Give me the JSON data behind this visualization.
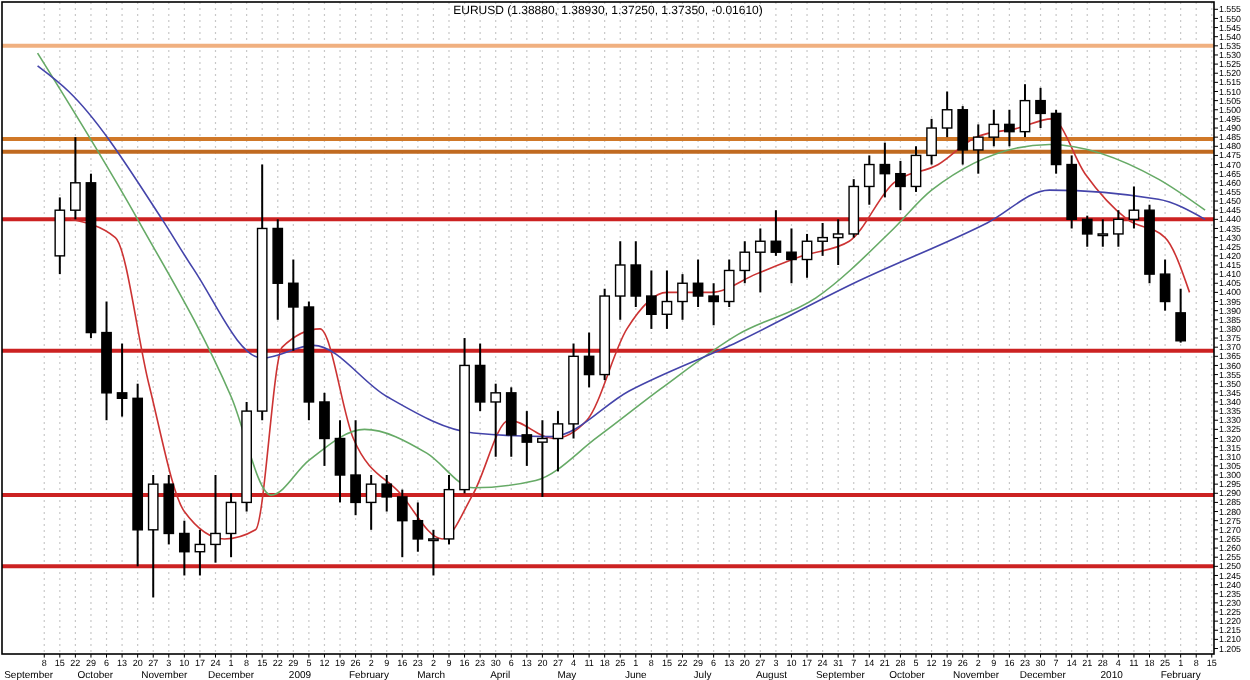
{
  "chart_data": {
    "type": "candlestick",
    "title": "EURUSD (1.38880, 1.38930, 1.37250, 1.37350, -0.01610)",
    "x": [
      "2008-09-15",
      "2008-09-22",
      "2008-09-29",
      "2008-10-06",
      "2008-10-13",
      "2008-10-20",
      "2008-10-27",
      "2008-11-03",
      "2008-11-10",
      "2008-11-17",
      "2008-11-24",
      "2008-12-01",
      "2008-12-08",
      "2008-12-15",
      "2008-12-22",
      "2008-12-29",
      "2009-01-05",
      "2009-01-12",
      "2009-01-19",
      "2009-01-26",
      "2009-02-02",
      "2009-02-09",
      "2009-02-16",
      "2009-02-23",
      "2009-03-02",
      "2009-03-09",
      "2009-03-16",
      "2009-03-23",
      "2009-03-30",
      "2009-04-06",
      "2009-04-13",
      "2009-04-20",
      "2009-04-27",
      "2009-05-04",
      "2009-05-11",
      "2009-05-18",
      "2009-05-25",
      "2009-06-01",
      "2009-06-08",
      "2009-06-15",
      "2009-06-22",
      "2009-06-29",
      "2009-07-06",
      "2009-07-13",
      "2009-07-20",
      "2009-07-27",
      "2009-08-03",
      "2009-08-10",
      "2009-08-17",
      "2009-08-24",
      "2009-08-31",
      "2009-09-07",
      "2009-09-14",
      "2009-09-21",
      "2009-09-28",
      "2009-10-05",
      "2009-10-12",
      "2009-10-19",
      "2009-10-26",
      "2009-11-02",
      "2009-11-09",
      "2009-11-16",
      "2009-11-23",
      "2009-11-30",
      "2009-12-07",
      "2009-12-14",
      "2009-12-21",
      "2009-12-28",
      "2010-01-04",
      "2010-01-11",
      "2010-01-18",
      "2010-01-25",
      "2010-02-01"
    ],
    "ohlc": [
      [
        1.42,
        1.452,
        1.41,
        1.445
      ],
      [
        1.445,
        1.485,
        1.44,
        1.46
      ],
      [
        1.46,
        1.465,
        1.375,
        1.378
      ],
      [
        1.378,
        1.395,
        1.33,
        1.345
      ],
      [
        1.345,
        1.372,
        1.332,
        1.342
      ],
      [
        1.342,
        1.35,
        1.25,
        1.27
      ],
      [
        1.27,
        1.3,
        1.233,
        1.295
      ],
      [
        1.295,
        1.3,
        1.262,
        1.268
      ],
      [
        1.268,
        1.275,
        1.245,
        1.258
      ],
      [
        1.258,
        1.27,
        1.245,
        1.262
      ],
      [
        1.262,
        1.3,
        1.252,
        1.268
      ],
      [
        1.268,
        1.29,
        1.255,
        1.285
      ],
      [
        1.285,
        1.34,
        1.28,
        1.335
      ],
      [
        1.335,
        1.47,
        1.33,
        1.435
      ],
      [
        1.435,
        1.44,
        1.385,
        1.405
      ],
      [
        1.405,
        1.418,
        1.368,
        1.392
      ],
      [
        1.392,
        1.395,
        1.33,
        1.34
      ],
      [
        1.34,
        1.345,
        1.305,
        1.32
      ],
      [
        1.32,
        1.33,
        1.285,
        1.3
      ],
      [
        1.3,
        1.33,
        1.278,
        1.285
      ],
      [
        1.285,
        1.3,
        1.27,
        1.295
      ],
      [
        1.295,
        1.3,
        1.28,
        1.288
      ],
      [
        1.288,
        1.292,
        1.255,
        1.275
      ],
      [
        1.275,
        1.285,
        1.258,
        1.265
      ],
      [
        1.265,
        1.27,
        1.245,
        1.265
      ],
      [
        1.265,
        1.3,
        1.262,
        1.292
      ],
      [
        1.292,
        1.375,
        1.29,
        1.36
      ],
      [
        1.36,
        1.372,
        1.335,
        1.34
      ],
      [
        1.34,
        1.35,
        1.31,
        1.345
      ],
      [
        1.345,
        1.348,
        1.31,
        1.322
      ],
      [
        1.322,
        1.335,
        1.305,
        1.318
      ],
      [
        1.318,
        1.33,
        1.288,
        1.32
      ],
      [
        1.32,
        1.335,
        1.302,
        1.328
      ],
      [
        1.328,
        1.372,
        1.32,
        1.365
      ],
      [
        1.365,
        1.378,
        1.348,
        1.355
      ],
      [
        1.355,
        1.402,
        1.352,
        1.398
      ],
      [
        1.398,
        1.428,
        1.385,
        1.415
      ],
      [
        1.415,
        1.428,
        1.392,
        1.398
      ],
      [
        1.398,
        1.412,
        1.38,
        1.388
      ],
      [
        1.388,
        1.412,
        1.38,
        1.395
      ],
      [
        1.395,
        1.41,
        1.385,
        1.405
      ],
      [
        1.405,
        1.418,
        1.392,
        1.398
      ],
      [
        1.398,
        1.405,
        1.382,
        1.395
      ],
      [
        1.395,
        1.418,
        1.392,
        1.412
      ],
      [
        1.412,
        1.428,
        1.405,
        1.422
      ],
      [
        1.422,
        1.435,
        1.4,
        1.428
      ],
      [
        1.428,
        1.445,
        1.42,
        1.422
      ],
      [
        1.422,
        1.435,
        1.405,
        1.418
      ],
      [
        1.418,
        1.432,
        1.408,
        1.428
      ],
      [
        1.428,
        1.438,
        1.42,
        1.43
      ],
      [
        1.43,
        1.44,
        1.415,
        1.432
      ],
      [
        1.432,
        1.462,
        1.43,
        1.458
      ],
      [
        1.458,
        1.475,
        1.448,
        1.47
      ],
      [
        1.47,
        1.482,
        1.452,
        1.465
      ],
      [
        1.465,
        1.472,
        1.445,
        1.458
      ],
      [
        1.458,
        1.48,
        1.455,
        1.475
      ],
      [
        1.475,
        1.495,
        1.47,
        1.49
      ],
      [
        1.49,
        1.51,
        1.485,
        1.5
      ],
      [
        1.5,
        1.502,
        1.47,
        1.478
      ],
      [
        1.478,
        1.492,
        1.465,
        1.485
      ],
      [
        1.485,
        1.5,
        1.48,
        1.492
      ],
      [
        1.492,
        1.5,
        1.48,
        1.488
      ],
      [
        1.488,
        1.514,
        1.485,
        1.505
      ],
      [
        1.505,
        1.512,
        1.49,
        1.498
      ],
      [
        1.498,
        1.5,
        1.465,
        1.47
      ],
      [
        1.47,
        1.475,
        1.435,
        1.44
      ],
      [
        1.44,
        1.442,
        1.425,
        1.432
      ],
      [
        1.432,
        1.44,
        1.425,
        1.432
      ],
      [
        1.432,
        1.445,
        1.425,
        1.44
      ],
      [
        1.44,
        1.458,
        1.435,
        1.445
      ],
      [
        1.445,
        1.448,
        1.405,
        1.41
      ],
      [
        1.41,
        1.418,
        1.39,
        1.395
      ],
      [
        1.3888,
        1.402,
        1.3725,
        1.3735
      ]
    ],
    "series": [
      {
        "type": "line",
        "color": "#cc3333",
        "x": [
          "2008-09-20",
          "2008-10-10",
          "2008-10-25",
          "2008-11-10",
          "2008-11-28",
          "2008-12-12",
          "2008-12-24",
          "2009-01-10",
          "2009-01-25",
          "2009-02-15",
          "2009-03-06",
          "2009-03-20",
          "2009-04-05",
          "2009-04-25",
          "2009-05-10",
          "2009-05-28",
          "2009-06-15",
          "2009-07-05",
          "2009-07-25",
          "2009-08-15",
          "2009-09-05",
          "2009-09-25",
          "2009-10-15",
          "2009-11-01",
          "2009-11-20",
          "2009-12-05",
          "2009-12-20",
          "2010-01-08",
          "2010-01-25",
          "2010-02-05"
        ],
        "values": [
          1.44,
          1.43,
          1.35,
          1.28,
          1.265,
          1.27,
          1.37,
          1.38,
          1.32,
          1.29,
          1.265,
          1.29,
          1.33,
          1.32,
          1.33,
          1.38,
          1.4,
          1.4,
          1.41,
          1.42,
          1.428,
          1.46,
          1.47,
          1.485,
          1.49,
          1.495,
          1.465,
          1.44,
          1.43,
          1.4
        ]
      },
      {
        "type": "line",
        "color": "#66aa66",
        "x": [
          "2008-09-05",
          "2008-10-20",
          "2008-12-01",
          "2008-12-19",
          "2009-01-05",
          "2009-01-30",
          "2009-02-27",
          "2009-03-20",
          "2009-04-17",
          "2009-05-15",
          "2009-06-12",
          "2009-07-17",
          "2009-08-21",
          "2009-09-25",
          "2009-10-12",
          "2009-12-04",
          "2010-01-22",
          "2010-02-12"
        ],
        "values": [
          1.531,
          1.44,
          1.343,
          1.289,
          1.308,
          1.325,
          1.312,
          1.293,
          1.297,
          1.321,
          1.347,
          1.377,
          1.397,
          1.435,
          1.456,
          1.481,
          1.462,
          1.445
        ]
      },
      {
        "type": "line",
        "color": "#4444aa",
        "x": [
          "2008-09-05",
          "2008-09-19",
          "2008-10-31",
          "2008-11-14",
          "2008-12-15",
          "2009-01-07",
          "2009-02-09",
          "2009-03-20",
          "2009-04-24",
          "2009-05-29",
          "2009-07-17",
          "2009-09-07",
          "2009-11-06",
          "2009-12-04",
          "2010-01-22",
          "2010-02-12"
        ],
        "values": [
          1.524,
          1.51,
          1.44,
          1.413,
          1.364,
          1.371,
          1.343,
          1.323,
          1.321,
          1.346,
          1.373,
          1.405,
          1.438,
          1.456,
          1.451,
          1.44
        ]
      }
    ],
    "ref_lines": [
      {
        "axis": "y",
        "value": 1.535,
        "color": "#f0b080"
      },
      {
        "axis": "y",
        "value": 1.484,
        "color": "#d07828"
      },
      {
        "axis": "y",
        "value": 1.477,
        "color": "#c06a20"
      },
      {
        "axis": "y",
        "value": 1.44,
        "color": "#cc2222"
      },
      {
        "axis": "y",
        "value": 1.368,
        "color": "#cc2222"
      },
      {
        "axis": "y",
        "value": 1.289,
        "color": "#cc2222"
      },
      {
        "axis": "y",
        "value": 1.25,
        "color": "#cc2222"
      }
    ],
    "xlim": [
      "2008-08-20",
      "2010-02-16"
    ],
    "xticks": [
      {
        "value": "2008-09-08",
        "label": "8"
      },
      {
        "value": "2008-09-15",
        "label": "15"
      },
      {
        "value": "2008-09-22",
        "label": "22"
      },
      {
        "value": "2008-09-29",
        "label": "29"
      },
      {
        "value": "2008-10-06",
        "label": "6"
      },
      {
        "value": "2008-10-13",
        "label": "13"
      },
      {
        "value": "2008-10-20",
        "label": "20"
      },
      {
        "value": "2008-10-27",
        "label": "27"
      },
      {
        "value": "2008-11-03",
        "label": "3"
      },
      {
        "value": "2008-11-10",
        "label": "10"
      },
      {
        "value": "2008-11-17",
        "label": "17"
      },
      {
        "value": "2008-11-24",
        "label": "24"
      },
      {
        "value": "2008-12-01",
        "label": "1"
      },
      {
        "value": "2008-12-08",
        "label": "8"
      },
      {
        "value": "2008-12-15",
        "label": "15"
      },
      {
        "value": "2008-12-22",
        "label": "22"
      },
      {
        "value": "2008-12-29",
        "label": "29"
      },
      {
        "value": "2009-01-05",
        "label": "5"
      },
      {
        "value": "2009-01-12",
        "label": "12"
      },
      {
        "value": "2009-01-19",
        "label": "19"
      },
      {
        "value": "2009-01-26",
        "label": "26"
      },
      {
        "value": "2009-02-02",
        "label": "2"
      },
      {
        "value": "2009-02-09",
        "label": "9"
      },
      {
        "value": "2009-02-16",
        "label": "16"
      },
      {
        "value": "2009-02-23",
        "label": "23"
      },
      {
        "value": "2009-03-02",
        "label": "2"
      },
      {
        "value": "2009-03-09",
        "label": "9"
      },
      {
        "value": "2009-03-16",
        "label": "16"
      },
      {
        "value": "2009-03-23",
        "label": "23"
      },
      {
        "value": "2009-03-30",
        "label": "30"
      },
      {
        "value": "2009-04-06",
        "label": "6"
      },
      {
        "value": "2009-04-13",
        "label": "13"
      },
      {
        "value": "2009-04-20",
        "label": "20"
      },
      {
        "value": "2009-04-27",
        "label": "27"
      },
      {
        "value": "2009-05-04",
        "label": "4"
      },
      {
        "value": "2009-05-11",
        "label": "11"
      },
      {
        "value": "2009-05-18",
        "label": "18"
      },
      {
        "value": "2009-05-25",
        "label": "25"
      },
      {
        "value": "2009-06-01",
        "label": "1"
      },
      {
        "value": "2009-06-08",
        "label": "8"
      },
      {
        "value": "2009-06-15",
        "label": "15"
      },
      {
        "value": "2009-06-22",
        "label": "22"
      },
      {
        "value": "2009-06-29",
        "label": "29"
      },
      {
        "value": "2009-07-06",
        "label": "6"
      },
      {
        "value": "2009-07-13",
        "label": "13"
      },
      {
        "value": "2009-07-20",
        "label": "20"
      },
      {
        "value": "2009-07-27",
        "label": "27"
      },
      {
        "value": "2009-08-03",
        "label": "3"
      },
      {
        "value": "2009-08-10",
        "label": "10"
      },
      {
        "value": "2009-08-17",
        "label": "17"
      },
      {
        "value": "2009-08-24",
        "label": "24"
      },
      {
        "value": "2009-08-31",
        "label": "31"
      },
      {
        "value": "2009-09-07",
        "label": "7"
      },
      {
        "value": "2009-09-14",
        "label": "14"
      },
      {
        "value": "2009-09-21",
        "label": "21"
      },
      {
        "value": "2009-09-28",
        "label": "28"
      },
      {
        "value": "2009-10-05",
        "label": "5"
      },
      {
        "value": "2009-10-12",
        "label": "12"
      },
      {
        "value": "2009-10-19",
        "label": "19"
      },
      {
        "value": "2009-10-26",
        "label": "26"
      },
      {
        "value": "2009-11-02",
        "label": "2"
      },
      {
        "value": "2009-11-09",
        "label": "9"
      },
      {
        "value": "2009-11-16",
        "label": "16"
      },
      {
        "value": "2009-11-23",
        "label": "23"
      },
      {
        "value": "2009-11-30",
        "label": "30"
      },
      {
        "value": "2009-12-07",
        "label": "7"
      },
      {
        "value": "2009-12-14",
        "label": "14"
      },
      {
        "value": "2009-12-21",
        "label": "21"
      },
      {
        "value": "2009-12-28",
        "label": "28"
      },
      {
        "value": "2010-01-04",
        "label": "4"
      },
      {
        "value": "2010-01-11",
        "label": "11"
      },
      {
        "value": "2010-01-18",
        "label": "18"
      },
      {
        "value": "2010-01-25",
        "label": "25"
      },
      {
        "value": "2010-02-01",
        "label": "1"
      },
      {
        "value": "2010-02-08",
        "label": "8"
      },
      {
        "value": "2010-02-15",
        "label": "15"
      }
    ],
    "x2lim": [
      "2008-08-20",
      "2010-02-16"
    ],
    "x2ticks": [
      {
        "value": "2008-09-01",
        "label": "September"
      },
      {
        "value": "2008-10-01",
        "label": "October"
      },
      {
        "value": "2008-11-01",
        "label": "November"
      },
      {
        "value": "2008-12-01",
        "label": "December"
      },
      {
        "value": "2009-01-01",
        "label": "2009"
      },
      {
        "value": "2009-02-01",
        "label": "February"
      },
      {
        "value": "2009-03-01",
        "label": "March"
      },
      {
        "value": "2009-04-01",
        "label": "April"
      },
      {
        "value": "2009-05-01",
        "label": "May"
      },
      {
        "value": "2009-06-01",
        "label": "June"
      },
      {
        "value": "2009-07-01",
        "label": "July"
      },
      {
        "value": "2009-08-01",
        "label": "August"
      },
      {
        "value": "2009-09-01",
        "label": "September"
      },
      {
        "value": "2009-10-01",
        "label": "October"
      },
      {
        "value": "2009-11-01",
        "label": "November"
      },
      {
        "value": "2009-12-01",
        "label": "December"
      },
      {
        "value": "2010-01-01",
        "label": "2010"
      },
      {
        "value": "2010-02-01",
        "label": "February"
      }
    ],
    "ylim": [
      1.202,
      1.559
    ],
    "yticks": [
      1.205,
      {
        "value": 1.21,
        "label": "1.210"
      },
      1.215,
      {
        "value": 1.22,
        "label": "1.220"
      },
      1.225,
      {
        "value": 1.23,
        "label": "1.230"
      },
      1.235,
      {
        "value": 1.24,
        "label": "1.240"
      },
      1.245,
      {
        "value": 1.25,
        "label": "1.250"
      },
      1.255,
      {
        "value": 1.26,
        "label": "1.260"
      },
      1.265,
      {
        "value": 1.27,
        "label": "1.270"
      },
      1.275,
      {
        "value": 1.28,
        "label": "1.280"
      },
      1.285,
      {
        "value": 1.29,
        "label": "1.290"
      },
      1.295,
      {
        "value": 1.3,
        "label": "1.300"
      },
      1.305,
      {
        "value": 1.31,
        "label": "1.310"
      },
      1.315,
      {
        "value": 1.32,
        "label": "1.320"
      },
      1.325,
      {
        "value": 1.33,
        "label": "1.330"
      },
      1.335,
      {
        "value": 1.34,
        "label": "1.340"
      },
      1.345,
      {
        "value": 1.35,
        "label": "1.350"
      },
      1.355,
      {
        "value": 1.36,
        "label": "1.360"
      },
      1.365,
      {
        "value": 1.37,
        "label": "1.370"
      },
      1.375,
      {
        "value": 1.38,
        "label": "1.380"
      },
      1.385,
      {
        "value": 1.39,
        "label": "1.390"
      },
      1.395,
      {
        "value": 1.4,
        "label": "1.400"
      },
      1.405,
      {
        "value": 1.41,
        "label": "1.410"
      },
      1.415,
      {
        "value": 1.42,
        "label": "1.420"
      },
      1.425,
      {
        "value": 1.43,
        "label": "1.430"
      },
      1.435,
      {
        "value": 1.44,
        "label": "1.440"
      },
      1.445,
      {
        "value": 1.45,
        "label": "1.450"
      },
      1.455,
      {
        "value": 1.46,
        "label": "1.460"
      },
      1.465,
      {
        "value": 1.47,
        "label": "1.470"
      },
      1.475,
      {
        "value": 1.48,
        "label": "1.480"
      },
      1.485,
      {
        "value": 1.49,
        "label": "1.490"
      },
      1.495,
      {
        "value": 1.5,
        "label": "1.500"
      },
      1.505,
      {
        "value": 1.51,
        "label": "1.510"
      },
      1.515,
      {
        "value": 1.52,
        "label": "1.520"
      },
      1.525,
      {
        "value": 1.53,
        "label": "1.530"
      },
      1.535,
      {
        "value": 1.54,
        "label": "1.540"
      },
      1.545,
      {
        "value": 1.55,
        "label": "1.550"
      },
      1.555
    ],
    "grid": "x"
  }
}
